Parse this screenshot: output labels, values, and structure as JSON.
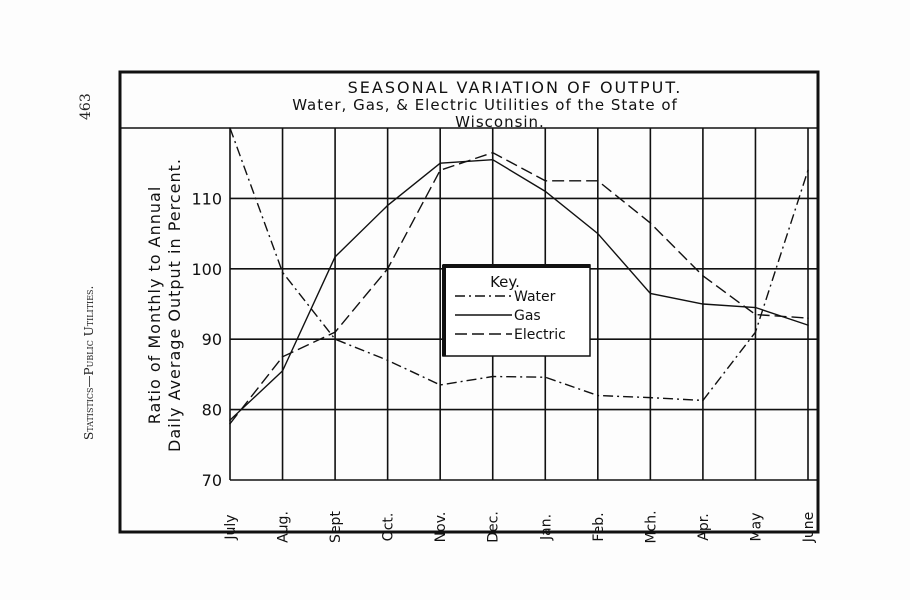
{
  "page": {
    "page_number": "463",
    "running_head": "Statistics—Public Utilities."
  },
  "chart_data": {
    "type": "line",
    "title": "SEASONAL VARIATION OF OUTPUT.",
    "subtitle": "Water, Gas, & Electric Utilities of the State of",
    "subtitle2": "Wisconsin.",
    "ylabel": "Ratio of Monthly to Annual",
    "ylabel2": "Daily Average Output in Percent.",
    "xlabel": "",
    "categories": [
      "July",
      "Aug.",
      "Sept",
      "Oct.",
      "Nov.",
      "Dec.",
      "Jan.",
      "Feb.",
      "Mch.",
      "Apr.",
      "May",
      "June"
    ],
    "yticks": [
      70,
      80,
      90,
      100,
      110
    ],
    "ylim": [
      70,
      120
    ],
    "grid": true,
    "legend": {
      "title": "Key.",
      "placement": "center"
    },
    "series": [
      {
        "name": "Water",
        "style": "dash-dot",
        "values": [
          120,
          99.5,
          90,
          87,
          83.5,
          84.7,
          84.6,
          82,
          81.7,
          81.3,
          91,
          114
        ]
      },
      {
        "name": "Gas",
        "style": "solid",
        "values": [
          78.5,
          85.5,
          101.7,
          109,
          115,
          115.5,
          111,
          105,
          96.5,
          95,
          94.5,
          92
        ]
      },
      {
        "name": "Electric",
        "style": "dashed",
        "values": [
          78,
          87.5,
          91,
          100,
          114,
          116.5,
          112.5,
          112.5,
          106.5,
          99,
          93.5,
          93
        ]
      }
    ]
  }
}
